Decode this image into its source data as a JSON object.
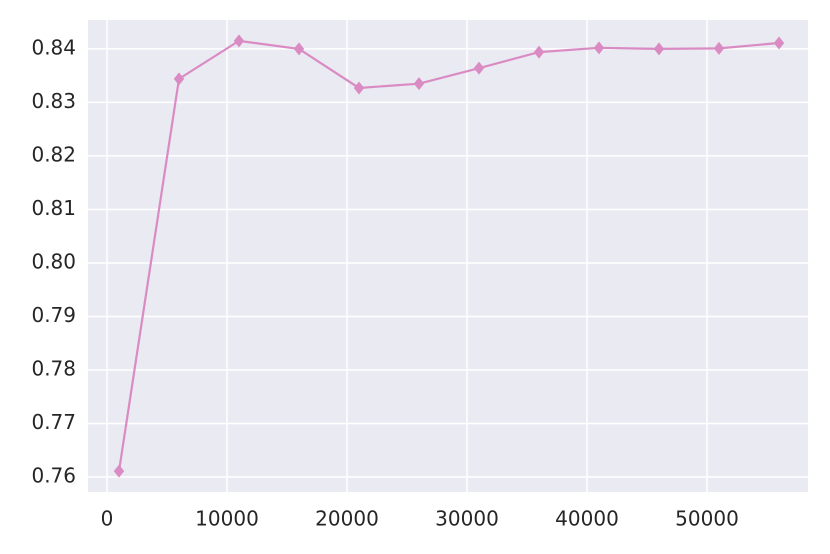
{
  "chart_data": {
    "type": "line",
    "x": [
      1000,
      6000,
      11000,
      16000,
      21000,
      26000,
      31000,
      36000,
      41000,
      46000,
      51000,
      56000
    ],
    "series": [
      {
        "color": "#da8bc3",
        "marker": "diamond",
        "values": [
          0.7611,
          0.8344,
          0.8415,
          0.84,
          0.8327,
          0.8335,
          0.8364,
          0.8394,
          0.8402,
          0.84,
          0.8401,
          0.8411
        ]
      }
    ],
    "xlim": [
      -1583,
      58417
    ],
    "xticks": [
      0,
      10000,
      20000,
      30000,
      40000,
      50000
    ],
    "ylim": [
      0.7572,
      0.8454
    ],
    "yticks": [
      0.76,
      0.77,
      0.78,
      0.79,
      {
        "value": 0.8,
        "label": "0.80"
      },
      0.81,
      0.82,
      0.83,
      0.84
    ],
    "grid": true
  }
}
